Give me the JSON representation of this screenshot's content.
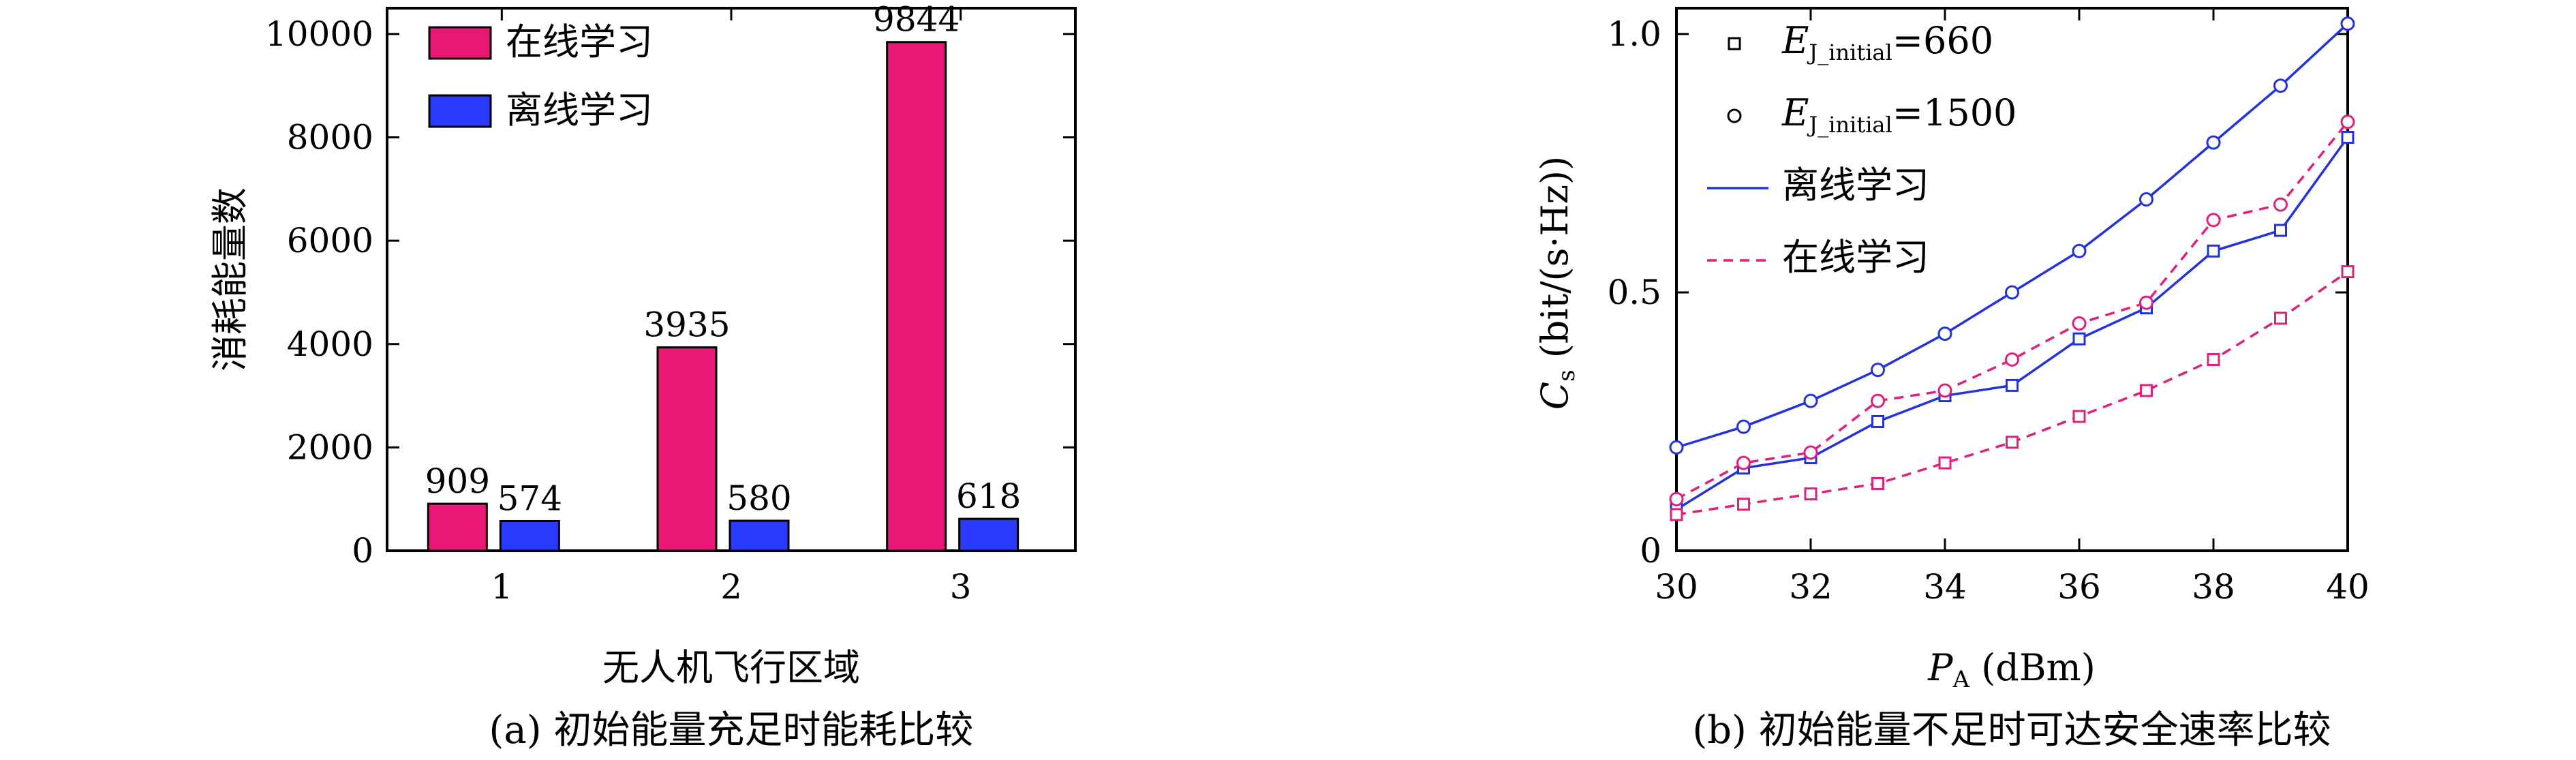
{
  "chart_data": [
    {
      "type": "bar",
      "caption": "(a) 初始能量充足时能耗比较",
      "xlabel": "无人机飞行区域",
      "ylabel": "消耗能量数",
      "categories": [
        "1",
        "2",
        "3"
      ],
      "ylim": [
        0,
        10500
      ],
      "yticks": [
        0,
        2000,
        4000,
        6000,
        8000,
        10000
      ],
      "series": [
        {
          "name": "在线学习",
          "color": "#ea1874",
          "values": [
            909,
            3935,
            9844
          ],
          "labels": [
            "909",
            "3935",
            "9844"
          ]
        },
        {
          "name": "离线学习",
          "color": "#2a3bff",
          "values": [
            574,
            580,
            618
          ],
          "labels": [
            "574",
            "580",
            "618"
          ]
        }
      ],
      "legend_position": "top-left",
      "grid": false
    },
    {
      "type": "line",
      "caption": "(b) 初始能量不足时可达安全速率比较",
      "xlabel": "P_A (dBm)",
      "ylabel": "C_s (bit/(s·Hz))",
      "xlim": [
        30,
        40
      ],
      "ylim": [
        0,
        1.05
      ],
      "xticks": [
        30,
        32,
        34,
        36,
        38,
        40
      ],
      "yticks": [
        0,
        0.5,
        1.0
      ],
      "ytick_labels": [
        "0",
        "0.5",
        "1.0"
      ],
      "x": [
        30,
        31,
        32,
        33,
        34,
        35,
        36,
        37,
        38,
        39,
        40
      ],
      "series": [
        {
          "marker": "circle",
          "style": "solid",
          "color": "#2233dd",
          "values": [
            0.2,
            0.24,
            0.29,
            0.35,
            0.42,
            0.5,
            0.58,
            0.68,
            0.79,
            0.9,
            1.02
          ]
        },
        {
          "marker": "square",
          "style": "solid",
          "color": "#2233dd",
          "values": [
            0.08,
            0.16,
            0.18,
            0.25,
            0.3,
            0.32,
            0.41,
            0.47,
            0.58,
            0.62,
            0.8
          ]
        },
        {
          "marker": "circle",
          "style": "dashed",
          "color": "#e0207a",
          "values": [
            0.1,
            0.17,
            0.19,
            0.29,
            0.31,
            0.37,
            0.44,
            0.48,
            0.64,
            0.67,
            0.83
          ]
        },
        {
          "marker": "square",
          "style": "dashed",
          "color": "#e0207a",
          "values": [
            0.07,
            0.09,
            0.11,
            0.13,
            0.17,
            0.21,
            0.26,
            0.31,
            0.37,
            0.45,
            0.54
          ]
        }
      ],
      "legend": [
        {
          "symbol": "square",
          "label_main": "E",
          "label_sub": "J_initial",
          "label_tail": "=660"
        },
        {
          "symbol": "circle",
          "label_main": "E",
          "label_sub": "J_initial",
          "label_tail": "=1500"
        },
        {
          "symbol": "solid-line",
          "label": "离线学习",
          "color": "#2233dd"
        },
        {
          "symbol": "dashed-line",
          "label": "在线学习",
          "color": "#e0207a"
        }
      ],
      "legend_position": "top-left",
      "grid": false
    }
  ]
}
